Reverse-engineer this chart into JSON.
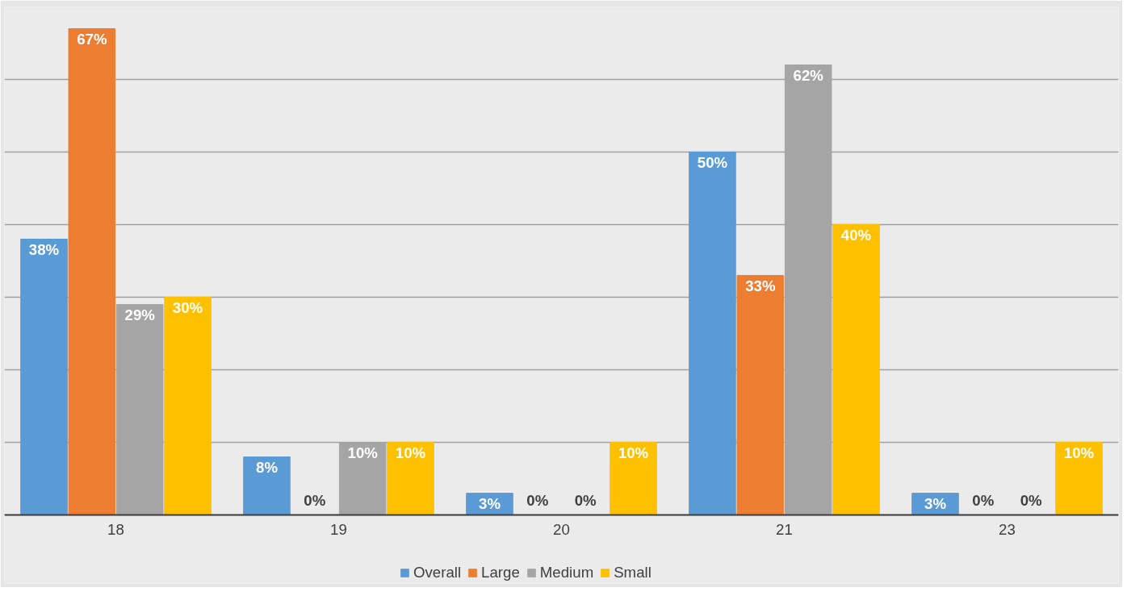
{
  "chart_data": {
    "type": "bar",
    "categories": [
      "18",
      "19",
      "20",
      "21",
      "23"
    ],
    "series": [
      {
        "name": "Overall",
        "color": "#5b9bd5",
        "values": [
          38,
          8,
          3,
          50,
          3
        ],
        "value_labels": [
          "38%",
          "8%",
          "3%",
          "50%",
          "3%"
        ]
      },
      {
        "name": "Large",
        "color": "#ed7d31",
        "values": [
          67,
          0,
          0,
          33,
          0
        ],
        "value_labels": [
          "67%",
          "0%",
          "0%",
          "33%",
          "0%"
        ]
      },
      {
        "name": "Medium",
        "color": "#a5a5a5",
        "values": [
          29,
          10,
          0,
          62,
          0
        ],
        "value_labels": [
          "29%",
          "10%",
          "0%",
          "62%",
          "0%"
        ]
      },
      {
        "name": "Small",
        "color": "#ffc000",
        "values": [
          30,
          10,
          10,
          40,
          10
        ],
        "value_labels": [
          "30%",
          "10%",
          "10%",
          "40%",
          "10%"
        ]
      }
    ],
    "ylim": [
      0,
      70
    ],
    "yticks": [
      {
        "value": 0,
        "label": null
      },
      {
        "value": 10,
        "label": null
      },
      {
        "value": 20,
        "label": null
      },
      {
        "value": 30,
        "label": null
      },
      {
        "value": 40,
        "label": null
      },
      {
        "value": 50,
        "label": null
      },
      {
        "value": 60,
        "label": null
      },
      {
        "value": 70,
        "label": null
      }
    ],
    "grid": "y",
    "legend": "bottom",
    "tick_labels": "x"
  }
}
